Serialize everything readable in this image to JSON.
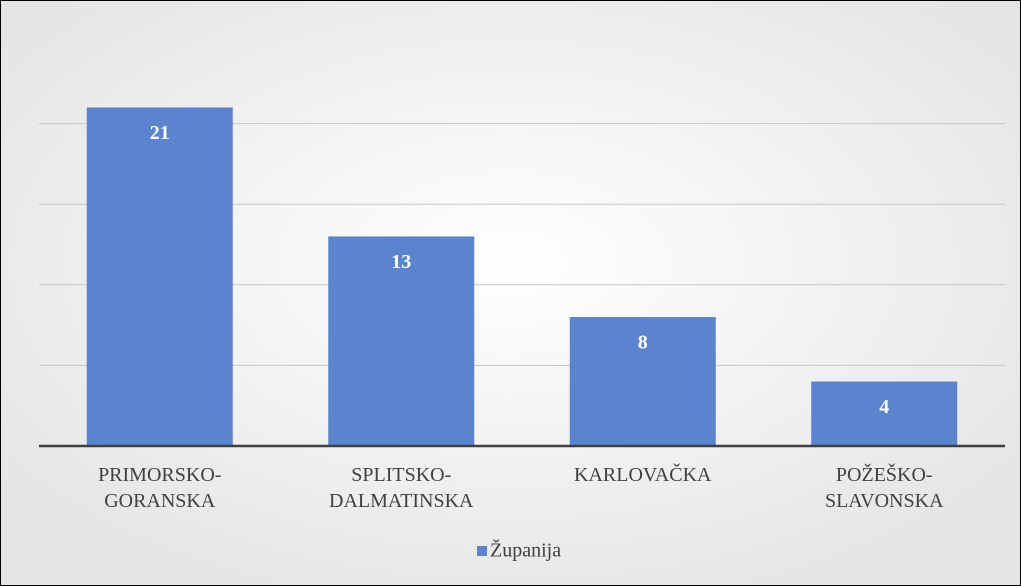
{
  "chart_data": {
    "type": "bar",
    "categories": [
      "PRIMORSKO-GORANSKA",
      "SPLITSKO-DALMATINSKA",
      "KARLOVAČKA",
      "POŽEŠKO-SLAVONSKA"
    ],
    "series": [
      {
        "name": "Županija",
        "color": "#5b84cf",
        "values": [
          21,
          13,
          8,
          4
        ]
      }
    ],
    "ylim": [
      0,
      25
    ],
    "yticks": [
      0,
      5,
      10,
      15,
      20
    ],
    "grid": true,
    "legend": "bottom"
  }
}
